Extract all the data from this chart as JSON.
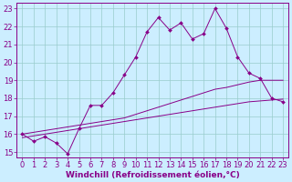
{
  "xlabel": "Windchill (Refroidissement éolien,°C)",
  "ylabel": "",
  "bg_color": "#cceeff",
  "line_color": "#880088",
  "grid_color": "#99cccc",
  "xlim_min": -0.5,
  "xlim_max": 23.5,
  "ylim_min": 14.7,
  "ylim_max": 23.3,
  "xticks": [
    0,
    1,
    2,
    3,
    4,
    5,
    6,
    7,
    8,
    9,
    10,
    11,
    12,
    13,
    14,
    15,
    16,
    17,
    18,
    19,
    20,
    21,
    22,
    23
  ],
  "yticks": [
    15,
    16,
    17,
    18,
    19,
    20,
    21,
    22,
    23
  ],
  "line1_x": [
    0,
    1,
    2,
    3,
    4,
    5,
    6,
    7,
    8,
    9,
    10,
    11,
    12,
    13,
    14,
    15,
    16,
    17,
    18,
    19,
    20,
    21,
    22,
    23
  ],
  "line1_y": [
    15.8,
    15.9,
    16.0,
    16.1,
    16.2,
    16.3,
    16.4,
    16.5,
    16.6,
    16.7,
    16.8,
    16.9,
    17.0,
    17.1,
    17.2,
    17.3,
    17.4,
    17.5,
    17.6,
    17.7,
    17.8,
    17.85,
    17.9,
    17.95
  ],
  "line2_x": [
    0,
    1,
    2,
    3,
    4,
    5,
    6,
    7,
    8,
    9,
    10,
    11,
    12,
    13,
    14,
    15,
    16,
    17,
    18,
    19,
    20,
    21,
    22,
    23
  ],
  "line2_y": [
    16.0,
    16.1,
    16.2,
    16.3,
    16.4,
    16.5,
    16.6,
    16.7,
    16.8,
    16.9,
    17.1,
    17.3,
    17.5,
    17.7,
    17.9,
    18.1,
    18.3,
    18.5,
    18.6,
    18.75,
    18.9,
    19.0,
    19.0,
    19.0
  ],
  "line3_x": [
    0,
    1,
    2,
    3,
    4,
    5,
    6,
    7,
    8,
    9,
    10,
    11,
    12,
    13,
    14,
    15,
    16,
    17,
    18,
    19,
    20,
    21,
    22,
    23
  ],
  "line3_y": [
    16.0,
    15.6,
    15.85,
    15.5,
    14.9,
    16.3,
    17.6,
    17.6,
    18.3,
    19.3,
    20.3,
    21.7,
    22.5,
    21.8,
    22.2,
    21.3,
    21.6,
    23.0,
    21.9,
    20.3,
    19.4,
    19.1,
    18.0,
    17.8
  ],
  "xlabel_fontsize": 6.5,
  "tick_fontsize": 6,
  "spine_color": "#880088",
  "label_color": "#880088"
}
